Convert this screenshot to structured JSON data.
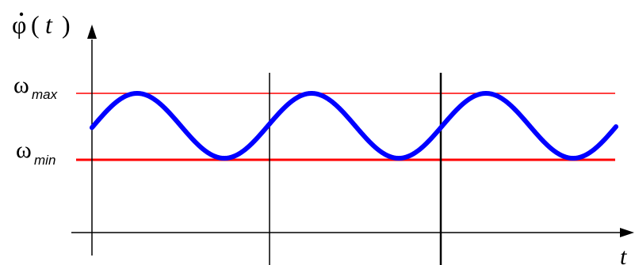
{
  "y_label": {
    "function": "φ",
    "open_paren": "(",
    "variable": "t",
    "close_paren": ")"
  },
  "x_label": "t",
  "levels": {
    "max": {
      "symbol": "ω",
      "subscript": "max"
    },
    "min": {
      "symbol": "ω",
      "subscript": "min"
    }
  },
  "colors": {
    "curve": "#0000ff",
    "level_lines": "#ff0000",
    "axes": "#000000",
    "text": "#000000"
  },
  "curve": {
    "shape": "sinusoid",
    "visible_periods": 3
  }
}
